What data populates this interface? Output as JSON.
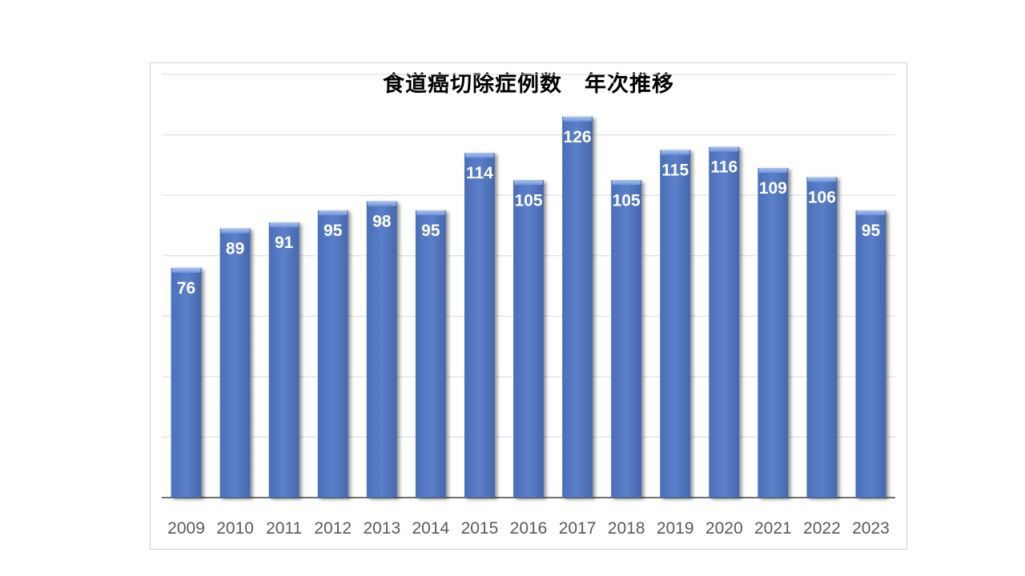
{
  "chart_data": {
    "type": "bar",
    "title": "食道癌切除症例数　年次推移",
    "xlabel": "",
    "ylabel": "",
    "categories": [
      "2009",
      "2010",
      "2011",
      "2012",
      "2013",
      "2014",
      "2015",
      "2016",
      "2017",
      "2018",
      "2019",
      "2020",
      "2021",
      "2022",
      "2023"
    ],
    "values": [
      76,
      89,
      91,
      95,
      98,
      95,
      114,
      105,
      126,
      105,
      115,
      116,
      109,
      106,
      95
    ],
    "ylim": [
      0,
      140
    ],
    "grid": true,
    "legend": "none",
    "data_labels": true,
    "colors": {
      "bar": "#5b80c9",
      "bar_top": "#8fb0ea",
      "gridline": "#d9d9d9",
      "axis": "#404040"
    }
  }
}
